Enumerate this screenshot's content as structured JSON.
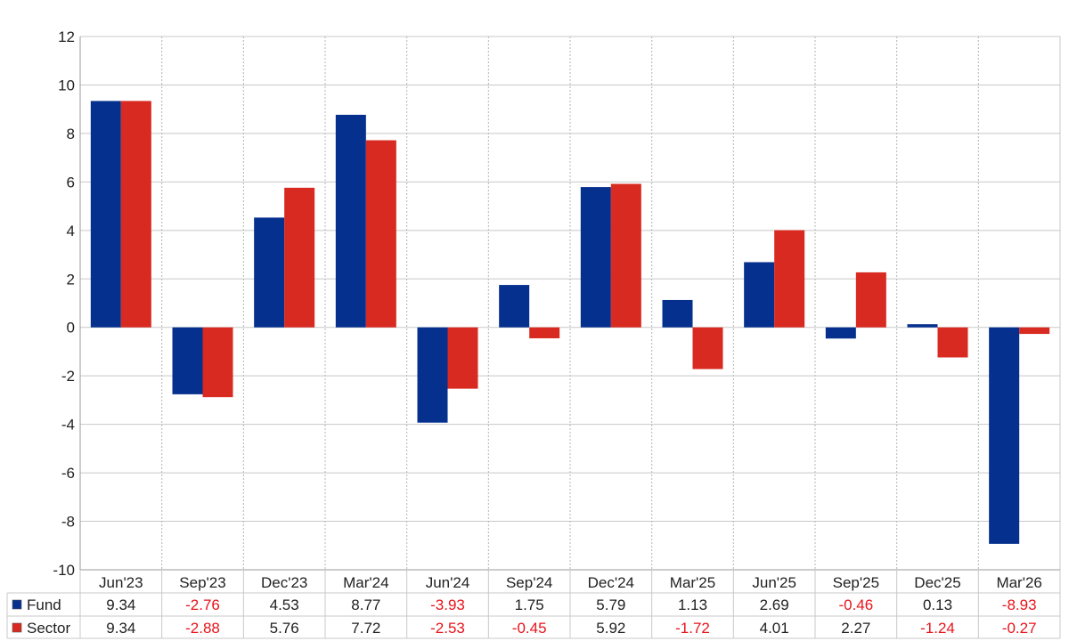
{
  "chart_data": {
    "type": "bar",
    "title": "",
    "xlabel": "",
    "ylabel": "",
    "ylim": [
      -10,
      12
    ],
    "y_ticks": [
      -10,
      -8,
      -6,
      -4,
      -2,
      0,
      2,
      4,
      6,
      8,
      10,
      12
    ],
    "grid": true,
    "legend_placement": "bottom-left table",
    "categories": [
      "Jun'23",
      "Sep'23",
      "Dec'23",
      "Mar'24",
      "Jun'24",
      "Sep'24",
      "Dec'24",
      "Mar'25",
      "Jun'25",
      "Sep'25",
      "Dec'25",
      "Mar'26"
    ],
    "series": [
      {
        "name": "Fund",
        "color": "#06308E",
        "values": [
          9.34,
          -2.76,
          4.53,
          8.77,
          -3.93,
          1.75,
          5.79,
          1.13,
          2.69,
          -0.46,
          0.13,
          -8.93
        ]
      },
      {
        "name": "Sector",
        "color": "#D82A20",
        "values": [
          9.34,
          -2.88,
          5.76,
          7.72,
          -2.53,
          -0.45,
          5.92,
          -1.72,
          4.01,
          2.27,
          -1.24,
          -0.27
        ]
      }
    ],
    "table_labels": {
      "Fund": [
        "9.34",
        "-2.76",
        "4.53",
        "8.77",
        "-3.93",
        "1.75",
        "5.79",
        "1.13",
        "2.69",
        "-0.46",
        "0.13",
        "-8.93"
      ],
      "Sector": [
        "9.34",
        "-2.88",
        "5.76",
        "7.72",
        "-2.53",
        "-0.45",
        "5.92",
        "-1.72",
        "4.01",
        "2.27",
        "-1.24",
        "-0.27"
      ]
    },
    "negative_value_color": "#E8141B",
    "positive_value_color": "#222222"
  }
}
